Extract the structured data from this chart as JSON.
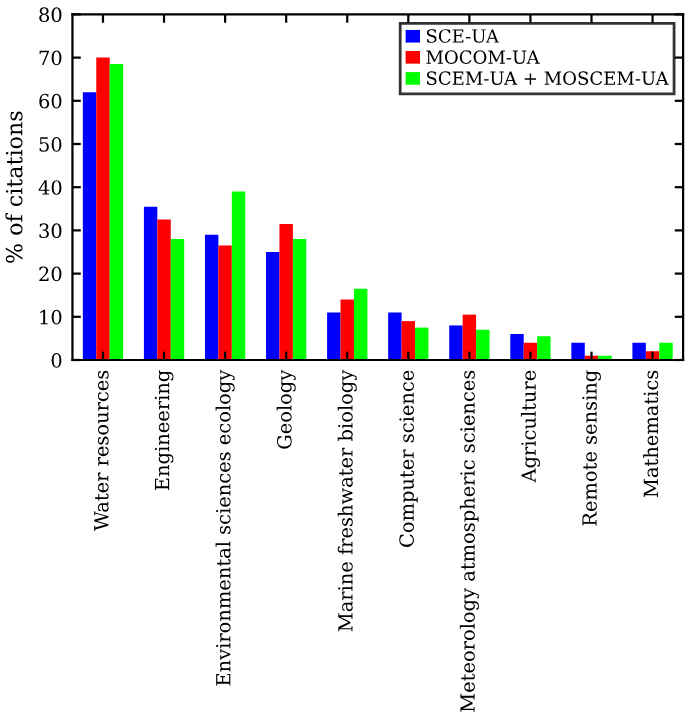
{
  "chart_data": {
    "type": "bar",
    "ylabel": "% of citations",
    "categories": [
      "Water resources",
      "Engineering",
      "Environmental sciences ecology",
      "Geology",
      "Marine freshwater biology",
      "Computer science",
      "Meteorology atmospheric sciences",
      "Agriculture",
      "Remote sensing",
      "Mathematics"
    ],
    "series": [
      {
        "name": "SCE-UA",
        "color": "#0000ff",
        "values": [
          62,
          35.5,
          29,
          25,
          11,
          11,
          8,
          6,
          4,
          4
        ]
      },
      {
        "name": "MOCOM-UA",
        "color": "#ff0000",
        "values": [
          70,
          32.5,
          26.5,
          31.5,
          14,
          9,
          10.5,
          4,
          1,
          2
        ]
      },
      {
        "name": "SCEM-UA + MOSCEM-UA",
        "color": "#00ff00",
        "values": [
          68.5,
          28,
          39,
          28,
          16.5,
          7.5,
          7,
          5.5,
          1,
          4
        ]
      }
    ],
    "ylim": [
      0,
      80
    ],
    "yticks": [
      0,
      10,
      20,
      30,
      40,
      50,
      60,
      70,
      80
    ],
    "grid": false,
    "legend": "top right"
  }
}
